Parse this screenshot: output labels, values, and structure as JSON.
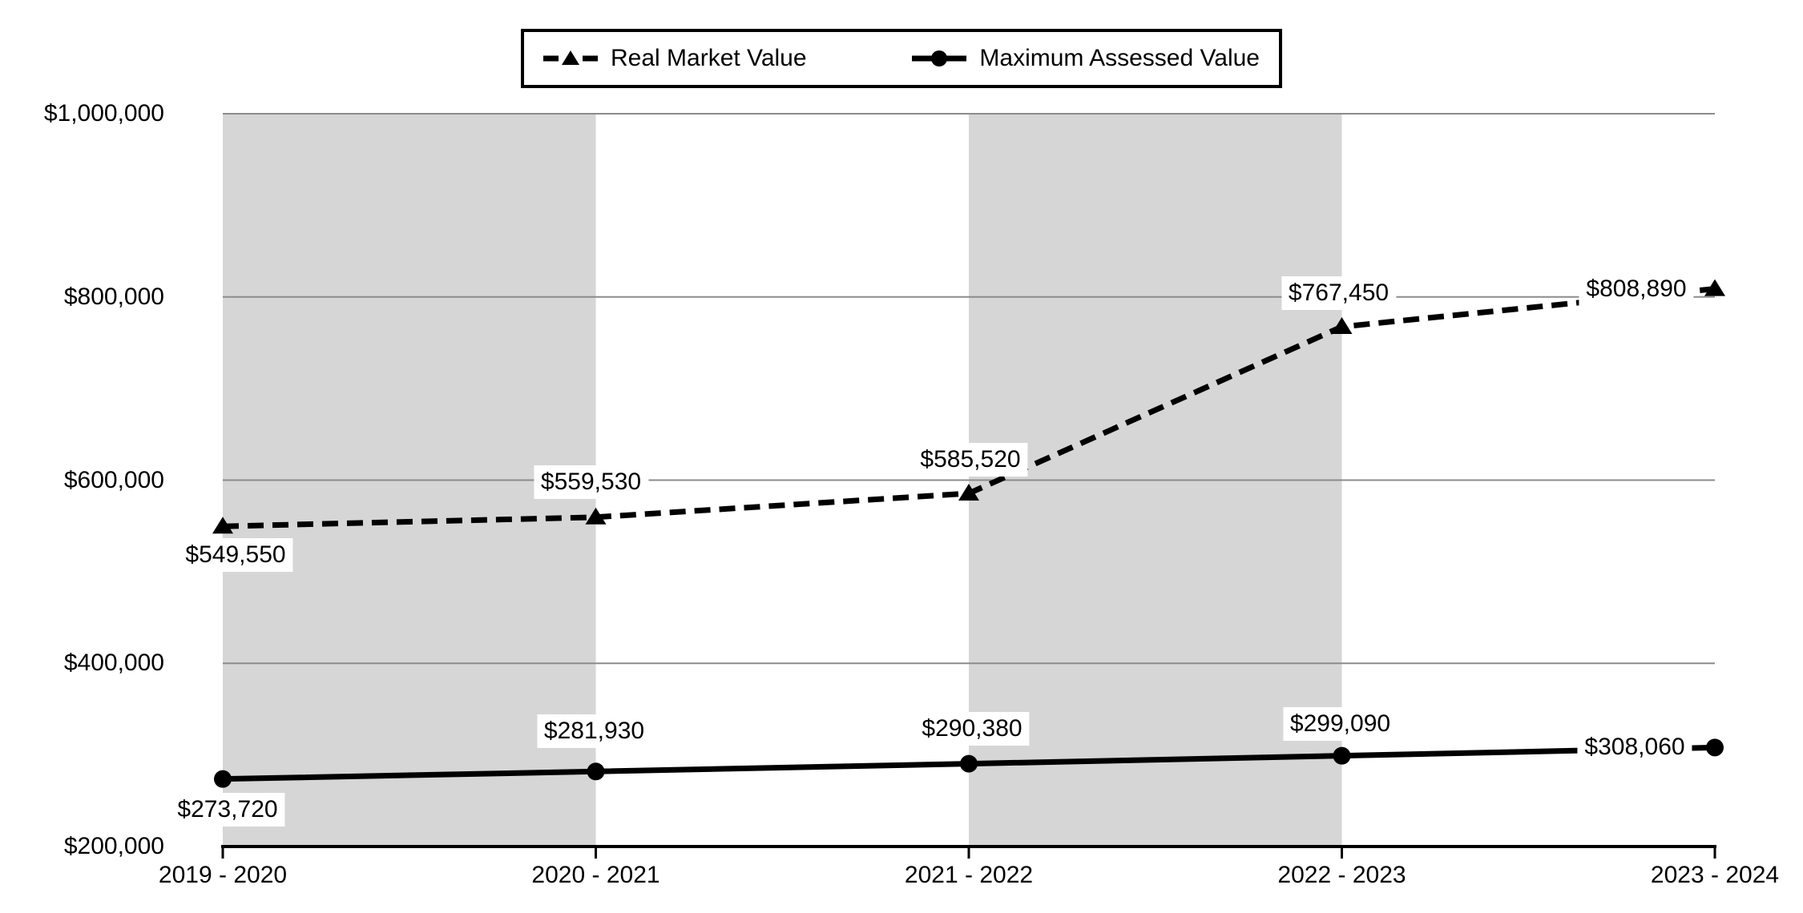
{
  "legend": {
    "items": [
      {
        "label": "Real Market Value",
        "marker": "dashed-line-triangle"
      },
      {
        "label": "Maximum Assessed Value",
        "marker": "solid-line-circle"
      }
    ]
  },
  "chart_data": {
    "type": "line",
    "title": "",
    "categories": [
      "2019 - 2020",
      "2020 - 2021",
      "2021 - 2022",
      "2022 - 2023",
      "2023 - 2024"
    ],
    "series": [
      {
        "name": "Real Market Value",
        "line_style": "dashed",
        "marker": "triangle",
        "values": [
          549550,
          559530,
          585520,
          767450,
          808890
        ],
        "labels": [
          "$549,550",
          "$559,530",
          "$585,520",
          "$767,450",
          "$808,890"
        ],
        "label_placement": [
          "below",
          "above",
          "above",
          "above",
          "left"
        ]
      },
      {
        "name": "Maximum Assessed Value",
        "line_style": "solid",
        "marker": "circle",
        "values": [
          273720,
          281930,
          290380,
          299090,
          308060
        ],
        "labels": [
          "$273,720",
          "$281,930",
          "$290,380",
          "$299,090",
          "$308,060"
        ],
        "label_placement": [
          "below",
          "above",
          "above",
          "above",
          "left"
        ]
      }
    ],
    "y_axis": {
      "min": 200000,
      "max": 1000000,
      "tick_interval": 200000,
      "ticks": [
        200000,
        400000,
        600000,
        800000,
        1000000
      ],
      "tick_labels": [
        "$200,000",
        "$400,000",
        "$600,000",
        "$800,000",
        "$1,000,000"
      ]
    },
    "x_axis": {
      "line": true,
      "tick_marks": true
    },
    "grid": true,
    "legend_position": "top",
    "shaded_column_intervals": [
      [
        0,
        1
      ],
      [
        2,
        3
      ]
    ],
    "colors": {
      "band": "#d6d6d6",
      "gridline": "#8c8c8c",
      "axis": "#000000",
      "series": "#000000",
      "label_bg": "#ffffff",
      "text": "#000000"
    }
  }
}
